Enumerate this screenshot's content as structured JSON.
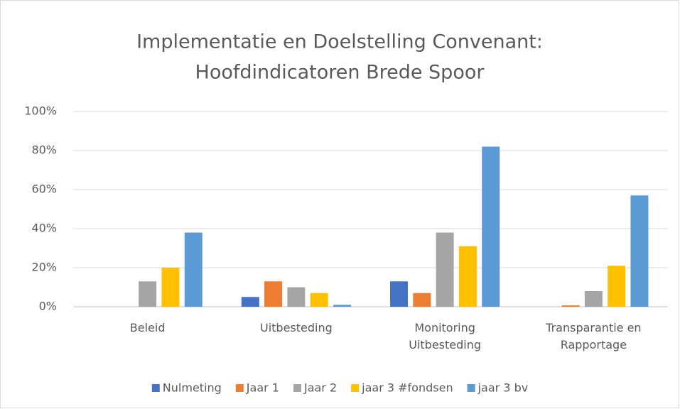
{
  "chart_data": {
    "type": "bar",
    "title": [
      "Implementatie en Doelstelling Convenant:",
      "Hoofdindicatoren Brede Spoor"
    ],
    "categories": [
      "Beleid",
      "Uitbesteding",
      "Monitoring Uitbesteding",
      "Transparantie en Rapportage"
    ],
    "series": [
      {
        "name": "Nulmeting",
        "color": "#4472c4",
        "values": [
          0,
          5,
          13,
          0
        ]
      },
      {
        "name": "Jaar 1",
        "color": "#ed7d31",
        "values": [
          0,
          13,
          7,
          0.7
        ]
      },
      {
        "name": "Jaar 2",
        "color": "#a5a5a5",
        "values": [
          13,
          10,
          38,
          8
        ]
      },
      {
        "name": "jaar 3 #fondsen",
        "color": "#ffc000",
        "values": [
          20,
          7,
          31,
          21
        ]
      },
      {
        "name": "jaar 3 bv",
        "color": "#5b9bd5",
        "values": [
          38,
          1,
          82,
          57
        ]
      }
    ],
    "ylim": [
      0,
      100
    ],
    "yticks": [
      {
        "value": 0,
        "label": "0%"
      },
      {
        "value": 20,
        "label": "20%"
      },
      {
        "value": 40,
        "label": "40%"
      },
      {
        "value": 60,
        "label": "60%"
      },
      {
        "value": 80,
        "label": "80%"
      },
      {
        "value": 100,
        "label": "100%"
      }
    ],
    "grid": true,
    "legend": "bottom"
  }
}
